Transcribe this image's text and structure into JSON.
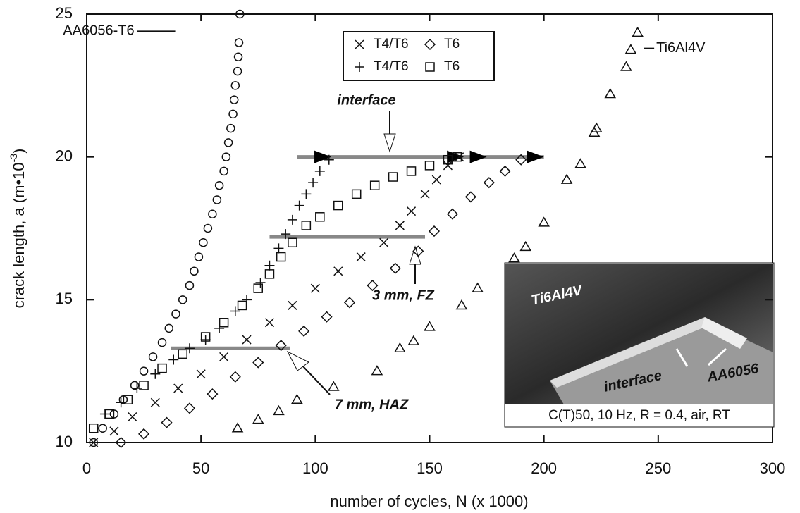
{
  "chart_data": {
    "type": "scatter",
    "x_label": "number of cycles, N (x 1000)",
    "y_label": "crack length, a (m•10",
    "y_label_exponent": "-3",
    "y_label_end": ")",
    "xlim": [
      0,
      300
    ],
    "ylim": [
      10,
      25
    ],
    "xticks": [
      0,
      50,
      100,
      150,
      200,
      250,
      300
    ],
    "yticks": [
      10,
      15,
      20,
      25
    ],
    "color": "#111111",
    "series": [
      {
        "name": "T4/T6",
        "marker": "x",
        "x": [
          3,
          12,
          20,
          30,
          40,
          50,
          60,
          70,
          80,
          90,
          100,
          110,
          120,
          130,
          137,
          142,
          148,
          153,
          158,
          163
        ],
        "values": [
          10,
          10.4,
          10.9,
          11.4,
          11.9,
          12.4,
          13,
          13.6,
          14.2,
          14.8,
          15.4,
          16,
          16.5,
          17,
          17.6,
          18.1,
          18.7,
          19.2,
          19.7,
          20
        ]
      },
      {
        "name": "T4/T6",
        "marker": "plus",
        "x": [
          8,
          15,
          22,
          30,
          38,
          45,
          52,
          58,
          65,
          70,
          76,
          80,
          84,
          87,
          90,
          93,
          96,
          99,
          102,
          106
        ],
        "values": [
          11,
          11.4,
          11.9,
          12.4,
          12.9,
          13.3,
          13.6,
          14,
          14.6,
          15,
          15.6,
          16.2,
          16.8,
          17.3,
          17.8,
          18.3,
          18.7,
          19.1,
          19.5,
          19.9
        ]
      },
      {
        "name": "T6",
        "marker": "diamond",
        "x": [
          15,
          25,
          35,
          45,
          55,
          65,
          75,
          85,
          95,
          105,
          115,
          125,
          135,
          145,
          152,
          160,
          168,
          176,
          183,
          190
        ],
        "values": [
          10,
          10.3,
          10.7,
          11.2,
          11.7,
          12.3,
          12.8,
          13.4,
          13.9,
          14.4,
          14.9,
          15.5,
          16.1,
          16.7,
          17.4,
          18,
          18.6,
          19.1,
          19.5,
          19.9
        ]
      },
      {
        "name": "T6",
        "marker": "square",
        "x": [
          3,
          10,
          18,
          25,
          33,
          42,
          52,
          60,
          68,
          75,
          80,
          85,
          90,
          96,
          102,
          110,
          118,
          126,
          134,
          142,
          150,
          158,
          162
        ],
        "values": [
          10.5,
          11,
          11.5,
          12,
          12.6,
          13.1,
          13.7,
          14.2,
          14.8,
          15.4,
          15.9,
          16.5,
          17,
          17.6,
          17.9,
          18.3,
          18.7,
          19,
          19.3,
          19.5,
          19.7,
          19.9,
          20
        ]
      }
    ],
    "labeled_series": [
      {
        "label": "AA6056-T6",
        "marker": "circle",
        "label_at": [
          27,
          24.4
        ],
        "x": [
          3,
          7,
          12,
          16,
          21,
          25,
          29,
          33,
          36,
          39,
          42,
          45,
          47,
          49,
          51,
          53,
          55,
          57,
          58,
          60,
          61,
          62,
          63,
          64,
          64.5,
          65,
          66,
          66.3,
          66.6,
          67
        ],
        "values": [
          10,
          10.5,
          11,
          11.5,
          12,
          12.5,
          13,
          13.5,
          14,
          14.5,
          15,
          15.5,
          16,
          16.5,
          17,
          17.5,
          18,
          18.5,
          19,
          19.5,
          20,
          20.5,
          21,
          21.5,
          22,
          22.5,
          23,
          23.5,
          24,
          25
        ]
      },
      {
        "label": "Ti6Al4V",
        "marker": "triangle",
        "label_at": [
          243,
          23.8
        ],
        "x": [
          66,
          75,
          84,
          92,
          108,
          127,
          137,
          143,
          150,
          164,
          171,
          187,
          192,
          200,
          210,
          216,
          222,
          223,
          229,
          236,
          238,
          241
        ],
        "values": [
          10.5,
          10.8,
          11.1,
          11.5,
          11.95,
          12.5,
          13.3,
          13.55,
          14.05,
          14.8,
          15.4,
          16.45,
          16.85,
          17.7,
          19.2,
          19.75,
          20.85,
          21,
          22.2,
          23.15,
          23.75,
          24.35
        ]
      }
    ],
    "reference_lines": [
      {
        "y": 20,
        "x": [
          92,
          200
        ],
        "arrows": [
          107,
          165,
          175,
          200
        ]
      },
      {
        "y": 17.2,
        "x": [
          80,
          148
        ]
      },
      {
        "y": 13.3,
        "x": [
          37,
          89
        ]
      }
    ],
    "annotations": [
      "interface",
      "3 mm, FZ",
      "7 mm, HAZ"
    ],
    "inset": {
      "labels": [
        "Ti6Al4V",
        "interface",
        "AA6056"
      ],
      "caption": "C(T)50, 10 Hz, R = 0.4, air, RT"
    }
  }
}
